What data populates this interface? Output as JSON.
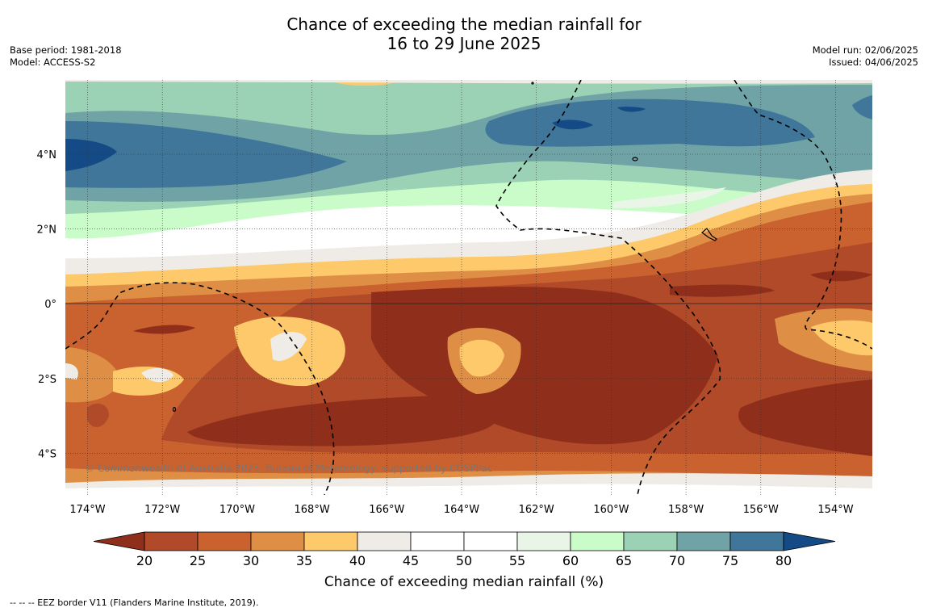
{
  "title": {
    "line1": "Chance of exceeding the median rainfall for",
    "line2": "16 to 29 June 2025"
  },
  "meta": {
    "base_period": "Base period: 1981-2018",
    "model": "Model: ACCESS-S2",
    "model_run": "Model run: 02/06/2025",
    "issued": "Issued: 04/06/2025"
  },
  "map": {
    "lon_labels": [
      "174°W",
      "172°W",
      "170°W",
      "168°W",
      "166°W",
      "164°W",
      "162°W",
      "160°W",
      "158°W",
      "156°W",
      "154°W"
    ],
    "lat_labels": [
      "4°N",
      "2°N",
      "0°",
      "2°S",
      "4°S"
    ],
    "copyright": "© Commonwealth of Australia 2025, Bureau of Meteorology, supported by COSPPac"
  },
  "colorbar": {
    "ticks": [
      "20",
      "25",
      "30",
      "35",
      "40",
      "45",
      "50",
      "55",
      "60",
      "65",
      "70",
      "75",
      "80"
    ],
    "colors": [
      "#8f2e1b",
      "#b04a28",
      "#c9622f",
      "#df8f45",
      "#fdc96a",
      "#efebe6",
      "#ffffff",
      "#ffffff",
      "#e9f5e6",
      "#c9fcc9",
      "#9bd1b5",
      "#6fa3a6",
      "#3f7699",
      "#144b86"
    ],
    "title": "Chance of exceeding median rainfall (%)"
  },
  "footer": {
    "legend": "--  --  -- EEZ border V11 (Flanders Marine Institute, 2019)."
  }
}
